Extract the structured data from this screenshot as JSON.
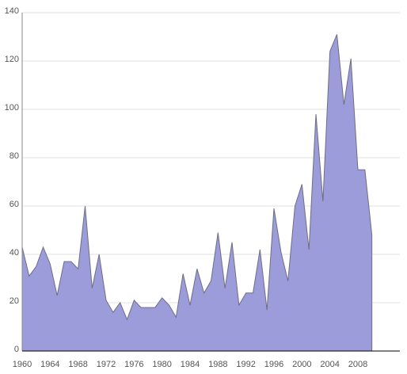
{
  "chart_data": {
    "type": "area",
    "title": "",
    "xlabel": "",
    "ylabel": "",
    "x": [
      1960,
      1961,
      1962,
      1963,
      1964,
      1965,
      1966,
      1967,
      1968,
      1969,
      1970,
      1971,
      1972,
      1973,
      1974,
      1975,
      1976,
      1977,
      1978,
      1979,
      1980,
      1981,
      1982,
      1983,
      1984,
      1985,
      1986,
      1987,
      1988,
      1989,
      1990,
      1991,
      1992,
      1993,
      1994,
      1995,
      1996,
      1997,
      1998,
      1999,
      2000,
      2001,
      2002,
      2003,
      2004,
      2005,
      2006,
      2007,
      2008,
      2009,
      2010
    ],
    "values": [
      43,
      31,
      35,
      43,
      36,
      23,
      37,
      37,
      34,
      60,
      26,
      40,
      21,
      16,
      20,
      13,
      21,
      18,
      18,
      18,
      22,
      19,
      14,
      32,
      19,
      34,
      24,
      29,
      49,
      26,
      45,
      19,
      24,
      24,
      42,
      17,
      59,
      41,
      29,
      60,
      69,
      42,
      98,
      62,
      124,
      131,
      102,
      121,
      75,
      75,
      48
    ],
    "xlim": [
      1960,
      2014
    ],
    "ylim": [
      0,
      140
    ],
    "x_ticks": [
      "1960",
      "1964",
      "1968",
      "1972",
      "1976",
      "1980",
      "1984",
      "1988",
      "1992",
      "1996",
      "2000",
      "2004",
      "2008"
    ],
    "y_ticks": [
      "0",
      "20",
      "40",
      "60",
      "80",
      "100",
      "120",
      "140"
    ],
    "grid": true,
    "legend": "none",
    "fill_color": "#9b9cd9",
    "line_color": "#6e6e80",
    "grid_color": "#e2e2e2",
    "axis_color": "#000000"
  }
}
